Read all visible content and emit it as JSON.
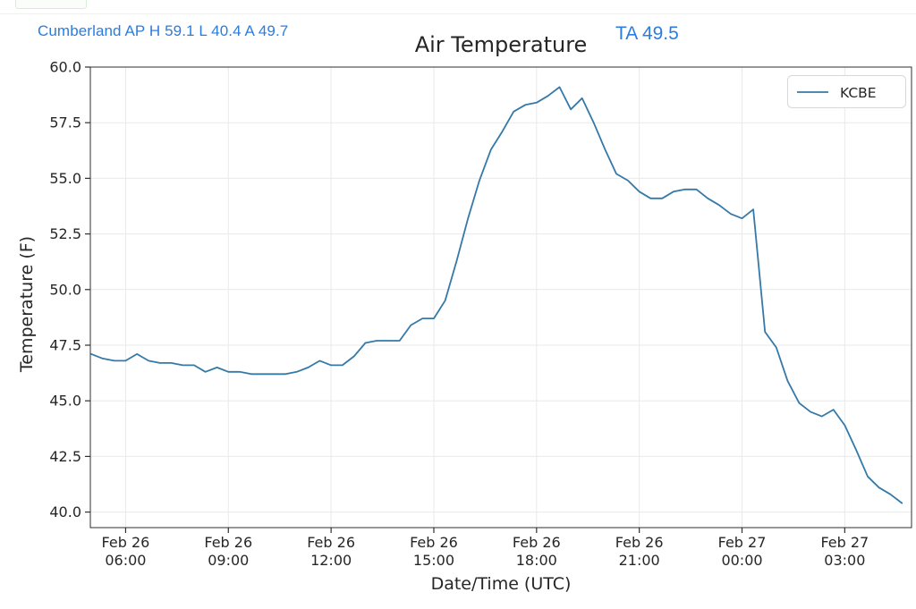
{
  "header": {
    "accent_color": "#2b7ce0",
    "station_summary": {
      "text": "Cumberland AP H 59.1 L 40.4 A 49.7",
      "station": "Cumberland AP",
      "high": "59.1",
      "low": "40.4",
      "average": "49.7"
    },
    "ta_reading": {
      "text": "TA 49.5",
      "label": "TA",
      "value": "49.5"
    }
  },
  "chart_data": {
    "type": "line",
    "title": "Air Temperature",
    "xlabel": "Date/Time (UTC)",
    "ylabel": "Temperature (F)",
    "grid": true,
    "grid_color": "#e9e9e9",
    "spine_color": "#2f2f2f",
    "legend": {
      "position": "upper right",
      "entries": [
        {
          "label": "KCBE",
          "color": "#3479a8"
        }
      ]
    },
    "x_unit": "hours since Feb 26 00:00 UTC",
    "xlim": [
      4.97,
      28.95
    ],
    "ylim": [
      39.3,
      60.0
    ],
    "xticks": [
      {
        "value": 6,
        "line1": "Feb 26",
        "line2": "06:00"
      },
      {
        "value": 9,
        "line1": "Feb 26",
        "line2": "09:00"
      },
      {
        "value": 12,
        "line1": "Feb 26",
        "line2": "12:00"
      },
      {
        "value": 15,
        "line1": "Feb 26",
        "line2": "15:00"
      },
      {
        "value": 18,
        "line1": "Feb 26",
        "line2": "18:00"
      },
      {
        "value": 21,
        "line1": "Feb 26",
        "line2": "21:00"
      },
      {
        "value": 24,
        "line1": "Feb 27",
        "line2": "00:00"
      },
      {
        "value": 27,
        "line1": "Feb 27",
        "line2": "03:00"
      }
    ],
    "yticks": [
      {
        "value": 40.0,
        "label": "40.0"
      },
      {
        "value": 42.5,
        "label": "42.5"
      },
      {
        "value": 45.0,
        "label": "45.0"
      },
      {
        "value": 47.5,
        "label": "47.5"
      },
      {
        "value": 50.0,
        "label": "50.0"
      },
      {
        "value": 52.5,
        "label": "52.5"
      },
      {
        "value": 55.0,
        "label": "55.0"
      },
      {
        "value": 57.5,
        "label": "57.5"
      },
      {
        "value": 60.0,
        "label": "60.0"
      }
    ],
    "series": [
      {
        "name": "KCBE",
        "color": "#3479a8",
        "x": [
          5.0,
          5.33,
          5.67,
          6.0,
          6.33,
          6.67,
          7.0,
          7.33,
          7.67,
          8.0,
          8.33,
          8.67,
          9.0,
          9.33,
          9.67,
          10.0,
          10.33,
          10.67,
          11.0,
          11.33,
          11.67,
          12.0,
          12.33,
          12.67,
          13.0,
          13.33,
          13.67,
          14.0,
          14.33,
          14.67,
          15.0,
          15.33,
          15.67,
          16.0,
          16.33,
          16.67,
          17.0,
          17.33,
          17.67,
          18.0,
          18.33,
          18.67,
          19.0,
          19.33,
          19.67,
          20.0,
          20.33,
          20.67,
          21.0,
          21.33,
          21.67,
          22.0,
          22.33,
          22.67,
          23.0,
          23.33,
          23.67,
          24.0,
          24.33,
          24.67,
          25.0,
          25.33,
          25.67,
          26.0,
          26.33,
          26.67,
          27.0,
          27.33,
          27.67,
          28.0,
          28.33,
          28.67
        ],
        "y": [
          47.1,
          46.9,
          46.8,
          46.8,
          47.1,
          46.8,
          46.7,
          46.7,
          46.6,
          46.6,
          46.3,
          46.5,
          46.3,
          46.3,
          46.2,
          46.2,
          46.2,
          46.2,
          46.3,
          46.5,
          46.8,
          46.6,
          46.6,
          47.0,
          47.6,
          47.7,
          47.7,
          47.7,
          48.4,
          48.7,
          48.7,
          49.5,
          51.3,
          53.2,
          54.9,
          56.3,
          57.1,
          58.0,
          58.3,
          58.4,
          58.7,
          59.1,
          58.1,
          58.6,
          57.5,
          56.3,
          55.2,
          54.9,
          54.4,
          54.1,
          54.1,
          54.4,
          54.5,
          54.5,
          54.1,
          53.8,
          53.4,
          53.2,
          53.6,
          48.1,
          47.4,
          45.9,
          44.9,
          44.5,
          44.3,
          44.6,
          43.9,
          42.8,
          41.6,
          41.1,
          40.8,
          40.4
        ]
      }
    ]
  }
}
